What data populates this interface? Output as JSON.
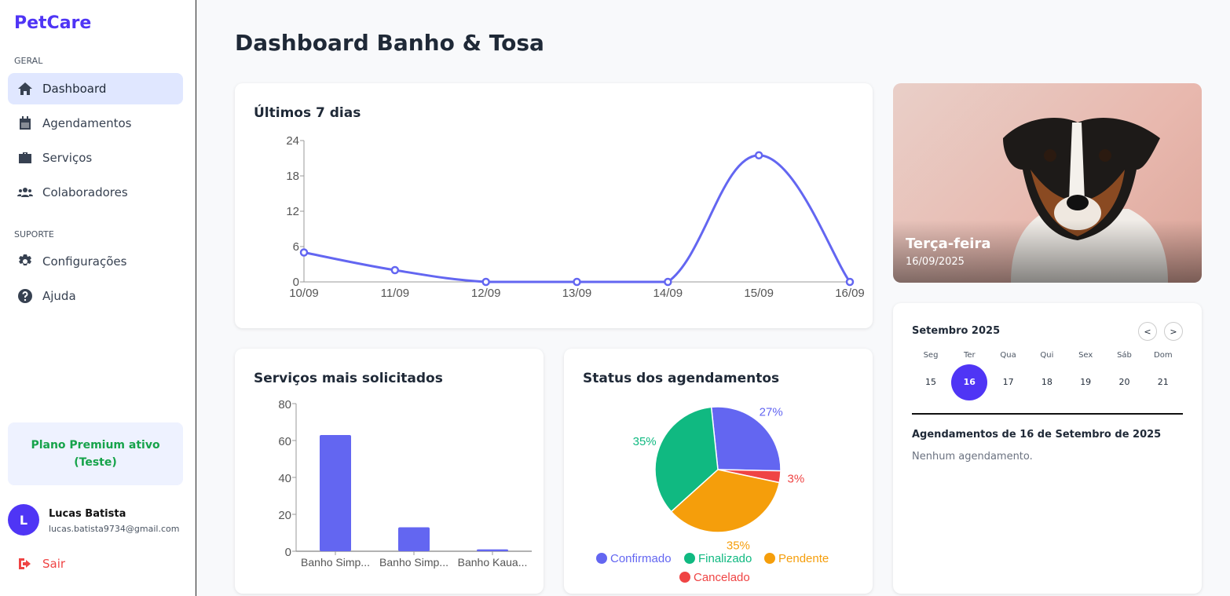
{
  "sidebar": {
    "logo": "PetCare",
    "section_general": "GERAL",
    "section_support": "SUPORTE",
    "items": [
      {
        "label": "Dashboard",
        "icon": "home-icon"
      },
      {
        "label": "Agendamentos",
        "icon": "calendar-icon"
      },
      {
        "label": "Serviços",
        "icon": "briefcase-icon"
      },
      {
        "label": "Colaboradores",
        "icon": "users-icon"
      },
      {
        "label": "Configurações",
        "icon": "gear-icon"
      },
      {
        "label": "Ajuda",
        "icon": "question-icon"
      }
    ],
    "plan": "Plano Premium ativo (Teste)",
    "user": {
      "initial": "L",
      "name": "Lucas Batista",
      "email": "lucas.batista9734@gmail.com"
    },
    "logout": "Sair"
  },
  "page_title": "Dashboard Banho & Tosa",
  "hero": {
    "day": "Terça-feira",
    "date": "16/09/2025"
  },
  "calendar": {
    "month": "Setembro 2025",
    "prev": "<",
    "next": ">",
    "weekdays": [
      "Seg",
      "Ter",
      "Qua",
      "Qui",
      "Sex",
      "Sáb",
      "Dom"
    ],
    "days": [
      "15",
      "16",
      "17",
      "18",
      "19",
      "20",
      "21"
    ],
    "selected": "16",
    "appointments_title": "Agendamentos de 16 de Setembro de 2025",
    "empty": "Nenhum agendamento."
  },
  "colors": {
    "accent": "#4f35f5",
    "series": "#6366f1"
  },
  "chart_data": [
    {
      "type": "line",
      "title": "Últimos 7 dias",
      "categories": [
        "10/09",
        "11/09",
        "12/09",
        "13/09",
        "14/09",
        "15/09",
        "16/09"
      ],
      "values": [
        5,
        2,
        0,
        0,
        0,
        21.5,
        0
      ],
      "ylim": [
        0,
        24
      ],
      "yticks": [
        "0",
        "6",
        "12",
        "18",
        "24"
      ],
      "color": "#6366f1",
      "smooth": true
    },
    {
      "type": "bar",
      "title": "Serviços mais solicitados",
      "categories": [
        "Banho Simp...",
        "Banho Simp...",
        "Banho Kaua..."
      ],
      "values": [
        63,
        13,
        1
      ],
      "ylim": [
        0,
        80
      ],
      "yticks": [
        "0",
        "20",
        "40",
        "60",
        "80"
      ],
      "color": "#6366f1"
    },
    {
      "type": "pie",
      "title": "Status dos agendamentos",
      "slices": [
        {
          "name": "Confirmado",
          "value": 27,
          "label": "27%",
          "color": "#6366f1"
        },
        {
          "name": "Finalizado",
          "value": 35,
          "label": "35%",
          "color": "#10b981"
        },
        {
          "name": "Pendente",
          "value": 35,
          "label": "35%",
          "color": "#f59e0b"
        },
        {
          "name": "Cancelado",
          "value": 3,
          "label": "3%",
          "color": "#ef4444"
        }
      ],
      "legend": "bottom"
    }
  ]
}
